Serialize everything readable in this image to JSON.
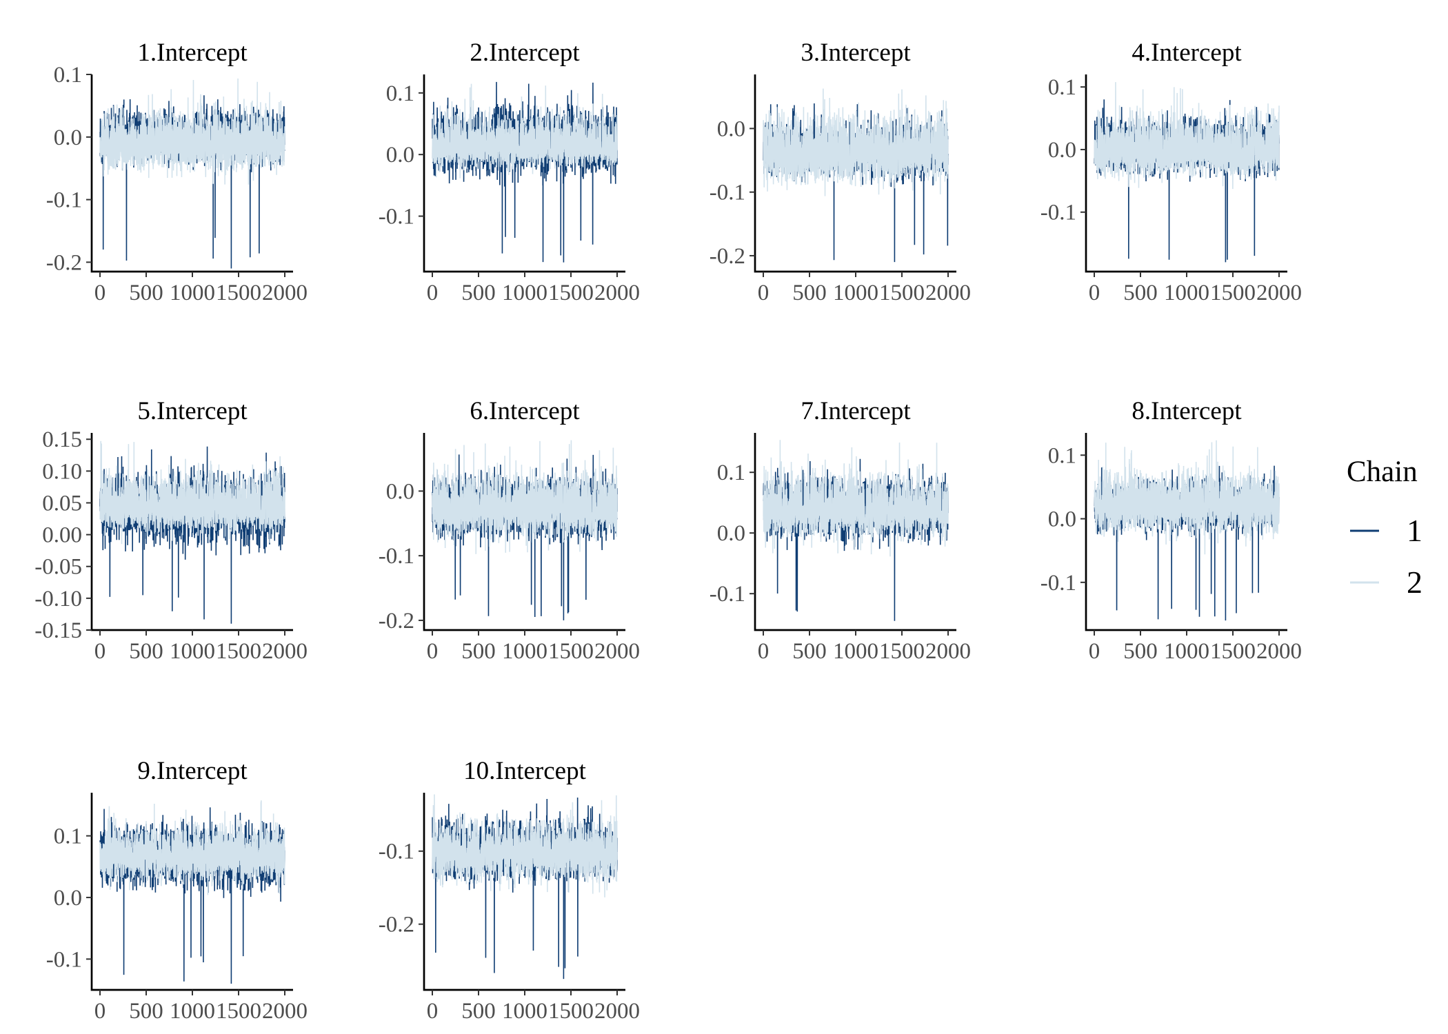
{
  "chart_data": {
    "type": "line",
    "x_range": [
      0,
      2000
    ],
    "x_ticks": [
      0,
      500,
      1000,
      1500,
      2000
    ],
    "x_tick_labels": [
      "0",
      "500",
      "1000",
      "1500",
      "2000"
    ],
    "grid": false,
    "legend": {
      "title": "Chain",
      "placement": "right",
      "entries": [
        {
          "label": "1",
          "color": "#0f3d73"
        },
        {
          "label": "2",
          "color": "#d2e2ec"
        }
      ]
    },
    "iterations": 2000,
    "panels": [
      {
        "title": "1.Intercept",
        "ylim": [
          -0.215,
          0.1
        ],
        "y_ticks": [
          0.1,
          0.0,
          -0.1,
          -0.2
        ],
        "y_tick_labels": [
          "0.1",
          "0.0",
          "-0.1",
          "-0.2"
        ],
        "series": [
          {
            "name": "1",
            "color": "#0f3d73",
            "center": 0.0,
            "min": -0.21,
            "max": 0.078,
            "spike_at": 1420,
            "spike_value": -0.21
          },
          {
            "name": "2",
            "color": "#d2e2ec",
            "center": -0.015,
            "min": -0.08,
            "max": 0.095
          }
        ]
      },
      {
        "title": "2.Intercept",
        "ylim": [
          -0.19,
          0.13
        ],
        "y_ticks": [
          0.1,
          0.0,
          -0.1
        ],
        "y_tick_labels": [
          "0.1",
          "0.0",
          "-0.1"
        ],
        "series": [
          {
            "name": "1",
            "color": "#0f3d73",
            "center": 0.02,
            "min": -0.175,
            "max": 0.118,
            "spike_at": 1420,
            "spike_value": -0.175
          },
          {
            "name": "2",
            "color": "#d2e2ec",
            "center": 0.01,
            "min": -0.04,
            "max": 0.115
          }
        ]
      },
      {
        "title": "3.Intercept",
        "ylim": [
          -0.225,
          0.085
        ],
        "y_ticks": [
          0.0,
          -0.1,
          -0.2
        ],
        "y_tick_labels": [
          "0.0",
          "-0.1",
          "-0.2"
        ],
        "series": [
          {
            "name": "1",
            "color": "#0f3d73",
            "center": -0.035,
            "min": -0.21,
            "max": 0.04,
            "spike_at": 1420,
            "spike_value": -0.21
          },
          {
            "name": "2",
            "color": "#d2e2ec",
            "center": -0.04,
            "min": -0.12,
            "max": 0.075
          }
        ]
      },
      {
        "title": "4.Intercept",
        "ylim": [
          -0.195,
          0.12
        ],
        "y_ticks": [
          0.1,
          0.0,
          -0.1
        ],
        "y_tick_labels": [
          "0.1",
          "0.0",
          "-0.1"
        ],
        "series": [
          {
            "name": "1",
            "color": "#0f3d73",
            "center": 0.005,
            "min": -0.18,
            "max": 0.085,
            "spike_at": 1420,
            "spike_value": -0.18
          },
          {
            "name": "2",
            "color": "#d2e2ec",
            "center": -0.005,
            "min": -0.075,
            "max": 0.11
          }
        ]
      },
      {
        "title": "5.Intercept",
        "ylim": [
          -0.15,
          0.16
        ],
        "y_ticks": [
          0.15,
          0.1,
          0.05,
          0.0,
          -0.05,
          -0.1,
          -0.15
        ],
        "y_tick_labels": [
          "0.15",
          "0.10",
          "0.05",
          "0.00",
          "-0.05",
          "-0.10",
          "-0.15"
        ],
        "series": [
          {
            "name": "1",
            "color": "#0f3d73",
            "center": 0.04,
            "min": -0.14,
            "max": 0.14,
            "spike_at": 1420,
            "spike_value": -0.14
          },
          {
            "name": "2",
            "color": "#d2e2ec",
            "center": 0.04,
            "min": -0.02,
            "max": 0.15
          }
        ]
      },
      {
        "title": "6.Intercept",
        "ylim": [
          -0.215,
          0.09
        ],
        "y_ticks": [
          0.0,
          -0.1,
          -0.2
        ],
        "y_tick_labels": [
          "0.0",
          "-0.1",
          "-0.2"
        ],
        "series": [
          {
            "name": "1",
            "color": "#0f3d73",
            "center": -0.025,
            "min": -0.2,
            "max": 0.06,
            "spike_at": 1420,
            "spike_value": -0.2
          },
          {
            "name": "2",
            "color": "#d2e2ec",
            "center": -0.03,
            "min": -0.1,
            "max": 0.08
          }
        ]
      },
      {
        "title": "7.Intercept",
        "ylim": [
          -0.16,
          0.165
        ],
        "y_ticks": [
          0.1,
          0.0,
          -0.1
        ],
        "y_tick_labels": [
          "0.1",
          "0.0",
          "-0.1"
        ],
        "series": [
          {
            "name": "1",
            "color": "#0f3d73",
            "center": 0.04,
            "min": -0.145,
            "max": 0.132,
            "spike_at": 1420,
            "spike_value": -0.145
          },
          {
            "name": "2",
            "color": "#d2e2ec",
            "center": 0.035,
            "min": -0.04,
            "max": 0.155
          }
        ]
      },
      {
        "title": "8.Intercept",
        "ylim": [
          -0.175,
          0.135
        ],
        "y_ticks": [
          0.1,
          0.0,
          -0.1
        ],
        "y_tick_labels": [
          "0.1",
          "0.0",
          "-0.1"
        ],
        "series": [
          {
            "name": "1",
            "color": "#0f3d73",
            "center": 0.02,
            "min": -0.16,
            "max": 0.09,
            "spike_at": 1420,
            "spike_value": -0.16
          },
          {
            "name": "2",
            "color": "#d2e2ec",
            "center": 0.02,
            "min": -0.06,
            "max": 0.125
          }
        ]
      },
      {
        "title": "9.Intercept",
        "ylim": [
          -0.15,
          0.17
        ],
        "y_ticks": [
          0.1,
          0.0,
          -0.1
        ],
        "y_tick_labels": [
          "0.1",
          "0.0",
          "-0.1"
        ],
        "series": [
          {
            "name": "1",
            "color": "#0f3d73",
            "center": 0.065,
            "min": -0.14,
            "max": 0.155,
            "spike_at": 1420,
            "spike_value": -0.14
          },
          {
            "name": "2",
            "color": "#d2e2ec",
            "center": 0.065,
            "min": 0.0,
            "max": 0.16
          }
        ]
      },
      {
        "title": "10.Intercept",
        "ylim": [
          -0.29,
          -0.02
        ],
        "y_ticks": [
          -0.1,
          -0.2
        ],
        "y_tick_labels": [
          "-0.1",
          "-0.2"
        ],
        "series": [
          {
            "name": "1",
            "color": "#0f3d73",
            "center": -0.1,
            "min": -0.275,
            "max": -0.025,
            "spike_at": 1420,
            "spike_value": -0.275
          },
          {
            "name": "2",
            "color": "#d2e2ec",
            "center": -0.105,
            "min": -0.17,
            "max": -0.02
          }
        ]
      }
    ]
  }
}
